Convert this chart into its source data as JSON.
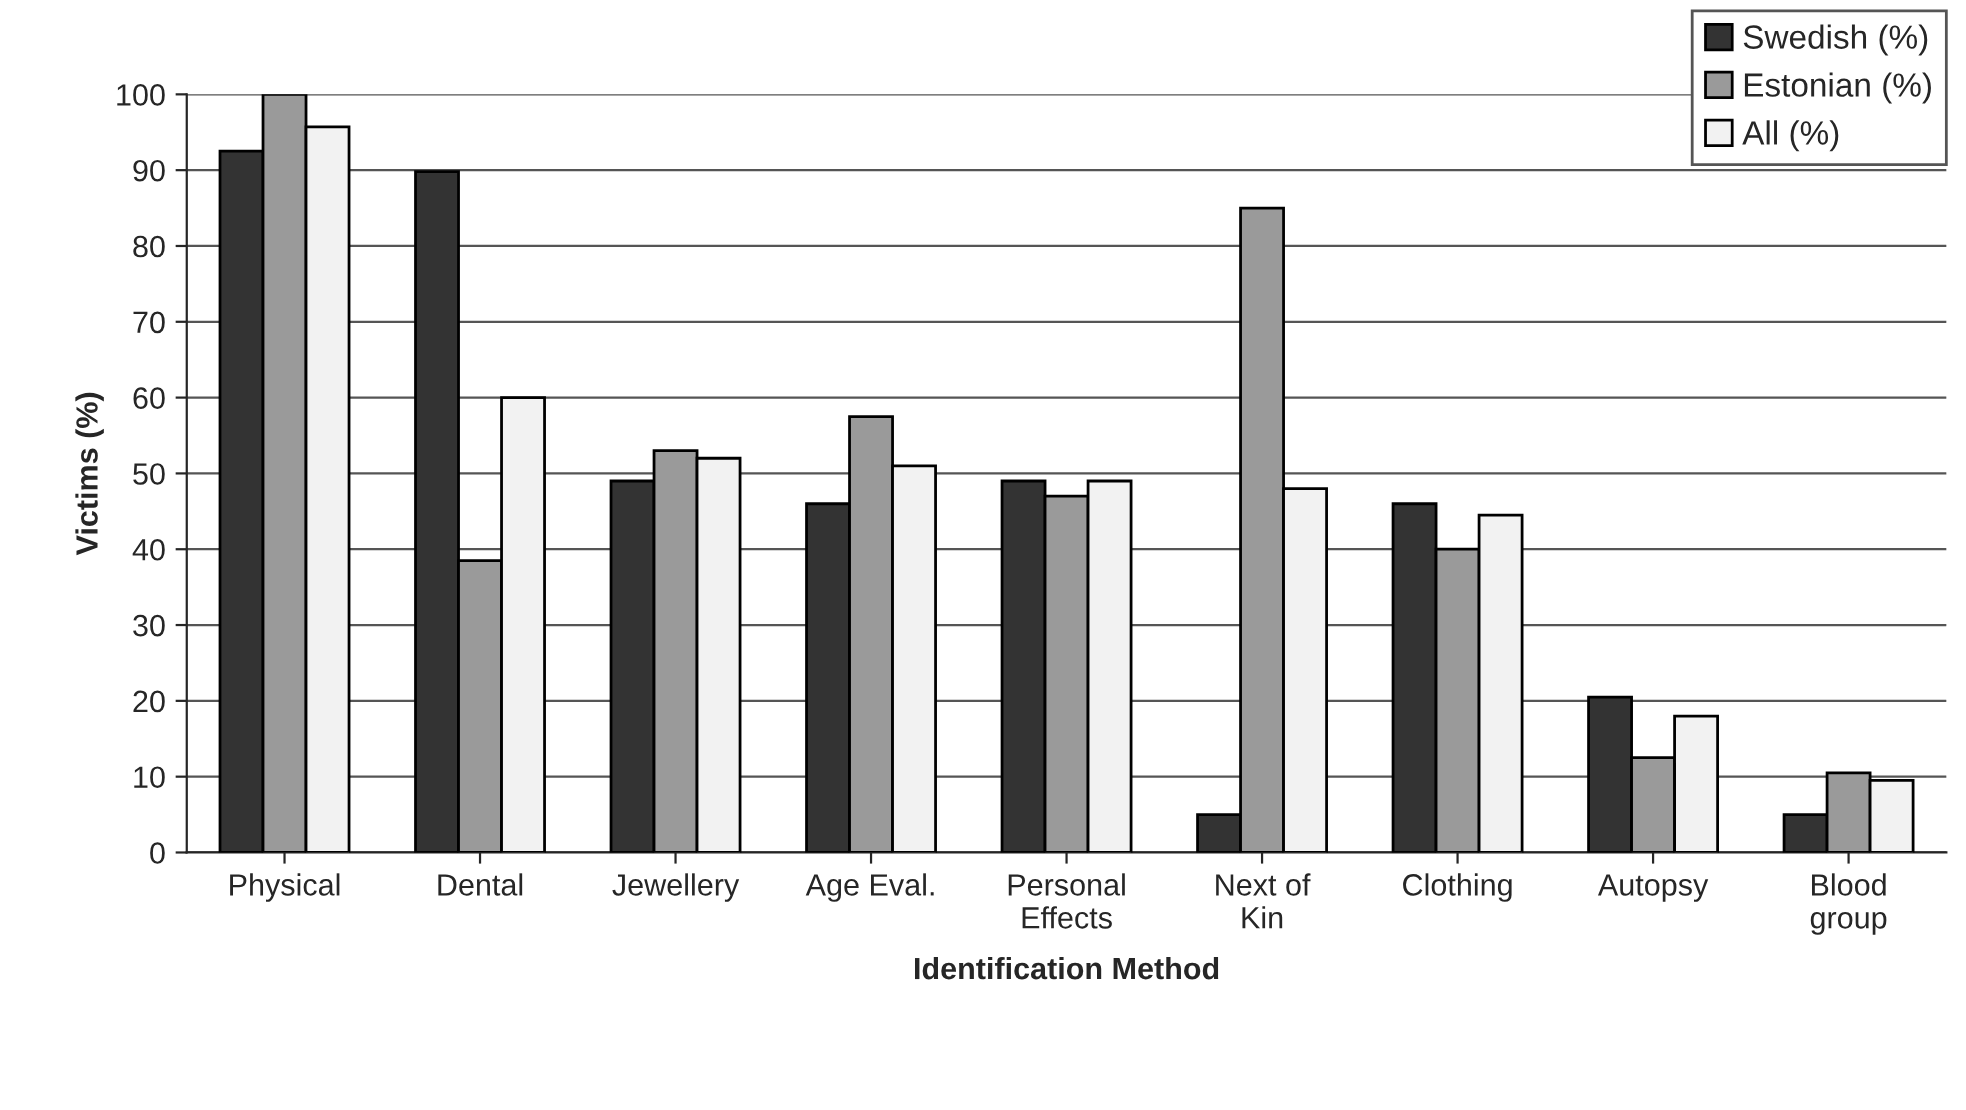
{
  "chart_data": {
    "type": "bar",
    "xlabel": "Identification Method",
    "ylabel": "Victims (%)",
    "categories": [
      "Physical",
      "Dental",
      "Jewellery",
      "Age Eval.",
      "Personal\nEffects",
      "Next of\nKin",
      "Clothing",
      "Autopsy",
      "Blood\ngroup"
    ],
    "series": [
      {
        "name": "Swedish (%)",
        "color": "#333333",
        "values": [
          92.5,
          89.8,
          49,
          46,
          49,
          5,
          46,
          20.5,
          5
        ]
      },
      {
        "name": "Estonian (%)",
        "color": "#9a9a9a",
        "values": [
          100,
          38.5,
          53,
          57.5,
          47,
          85,
          40,
          12.5,
          10.5
        ]
      },
      {
        "name": "All (%)",
        "color": "#f2f2f2",
        "values": [
          95.7,
          60,
          52,
          51,
          49,
          48,
          44.5,
          18,
          9.5
        ]
      }
    ],
    "ylim": [
      0,
      100
    ],
    "yticks": [
      0,
      10,
      20,
      30,
      40,
      50,
      60,
      70,
      80,
      90,
      100
    ],
    "grid": "y",
    "legend": "top right"
  }
}
